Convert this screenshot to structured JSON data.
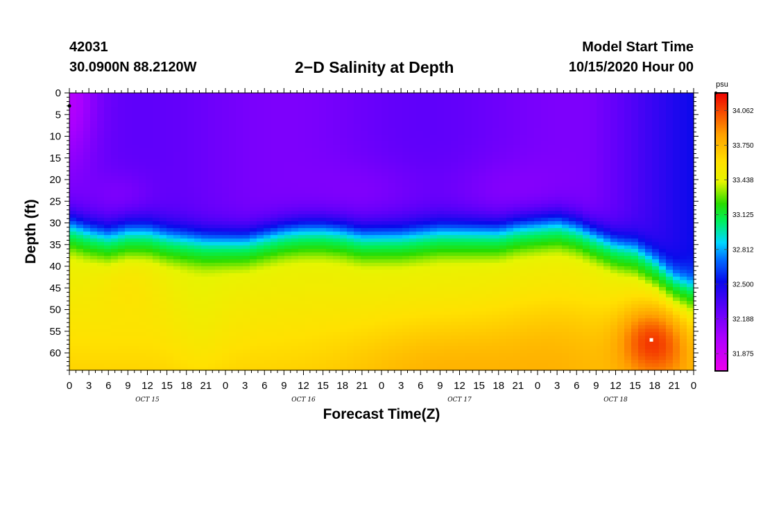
{
  "header": {
    "station": "42031",
    "latlon": "30.0900N 88.2120W",
    "title": "2−D Salinity at Depth",
    "start_label": "Model Start Time",
    "start_value": "10/15/2020 Hour 00"
  },
  "chart_data": {
    "type": "heatmap",
    "title": "2−D Salinity at Depth",
    "xlabel": "Forecast Time(Z)",
    "ylabel": "Depth (ft)",
    "x_hours_range": [
      0,
      96
    ],
    "x_tick_labels": [
      "0",
      "3",
      "6",
      "9",
      "12",
      "15",
      "18",
      "21",
      "0",
      "3",
      "6",
      "9",
      "12",
      "15",
      "18",
      "21",
      "0",
      "3",
      "6",
      "9",
      "12",
      "15",
      "18",
      "21",
      "0",
      "3",
      "6",
      "9",
      "12",
      "15",
      "18",
      "21",
      "0"
    ],
    "day_labels": [
      {
        "text": "OCT 15",
        "hour": 12
      },
      {
        "text": "OCT 16",
        "hour": 36
      },
      {
        "text": "OCT 17",
        "hour": 60
      },
      {
        "text": "OCT 18",
        "hour": 84
      }
    ],
    "y_range_ft": [
      0,
      64
    ],
    "y_ticks": [
      0,
      5,
      10,
      15,
      20,
      25,
      30,
      35,
      40,
      45,
      50,
      55,
      60
    ],
    "units": "psu",
    "colorbar": {
      "min": 31.72,
      "max": 34.22,
      "labels": [
        "34.062",
        "33.750",
        "33.438",
        "33.125",
        "32.812",
        "32.500",
        "32.188",
        "31.875"
      ]
    },
    "halocline_depth_ft": [
      {
        "hour": 0,
        "depth": 30.5
      },
      {
        "hour": 3,
        "depth": 32
      },
      {
        "hour": 6,
        "depth": 33
      },
      {
        "hour": 9,
        "depth": 32
      },
      {
        "hour": 12,
        "depth": 32
      },
      {
        "hour": 15,
        "depth": 33
      },
      {
        "hour": 18,
        "depth": 33.5
      },
      {
        "hour": 21,
        "depth": 34
      },
      {
        "hour": 24,
        "depth": 34
      },
      {
        "hour": 27,
        "depth": 34
      },
      {
        "hour": 30,
        "depth": 33
      },
      {
        "hour": 33,
        "depth": 32
      },
      {
        "hour": 36,
        "depth": 31.5
      },
      {
        "hour": 39,
        "depth": 31.5
      },
      {
        "hour": 42,
        "depth": 32
      },
      {
        "hour": 45,
        "depth": 33
      },
      {
        "hour": 48,
        "depth": 33
      },
      {
        "hour": 51,
        "depth": 33
      },
      {
        "hour": 54,
        "depth": 32.5
      },
      {
        "hour": 57,
        "depth": 32
      },
      {
        "hour": 60,
        "depth": 32
      },
      {
        "hour": 63,
        "depth": 32
      },
      {
        "hour": 66,
        "depth": 32
      },
      {
        "hour": 69,
        "depth": 31
      },
      {
        "hour": 72,
        "depth": 30.5
      },
      {
        "hour": 75,
        "depth": 30
      },
      {
        "hour": 78,
        "depth": 31
      },
      {
        "hour": 81,
        "depth": 33
      },
      {
        "hour": 84,
        "depth": 35
      },
      {
        "hour": 87,
        "depth": 36
      },
      {
        "hour": 90,
        "depth": 39
      },
      {
        "hour": 93,
        "depth": 43
      },
      {
        "hour": 96,
        "depth": 45
      }
    ],
    "max_marker": {
      "hour": 89.5,
      "depth_ft": 57
    }
  }
}
